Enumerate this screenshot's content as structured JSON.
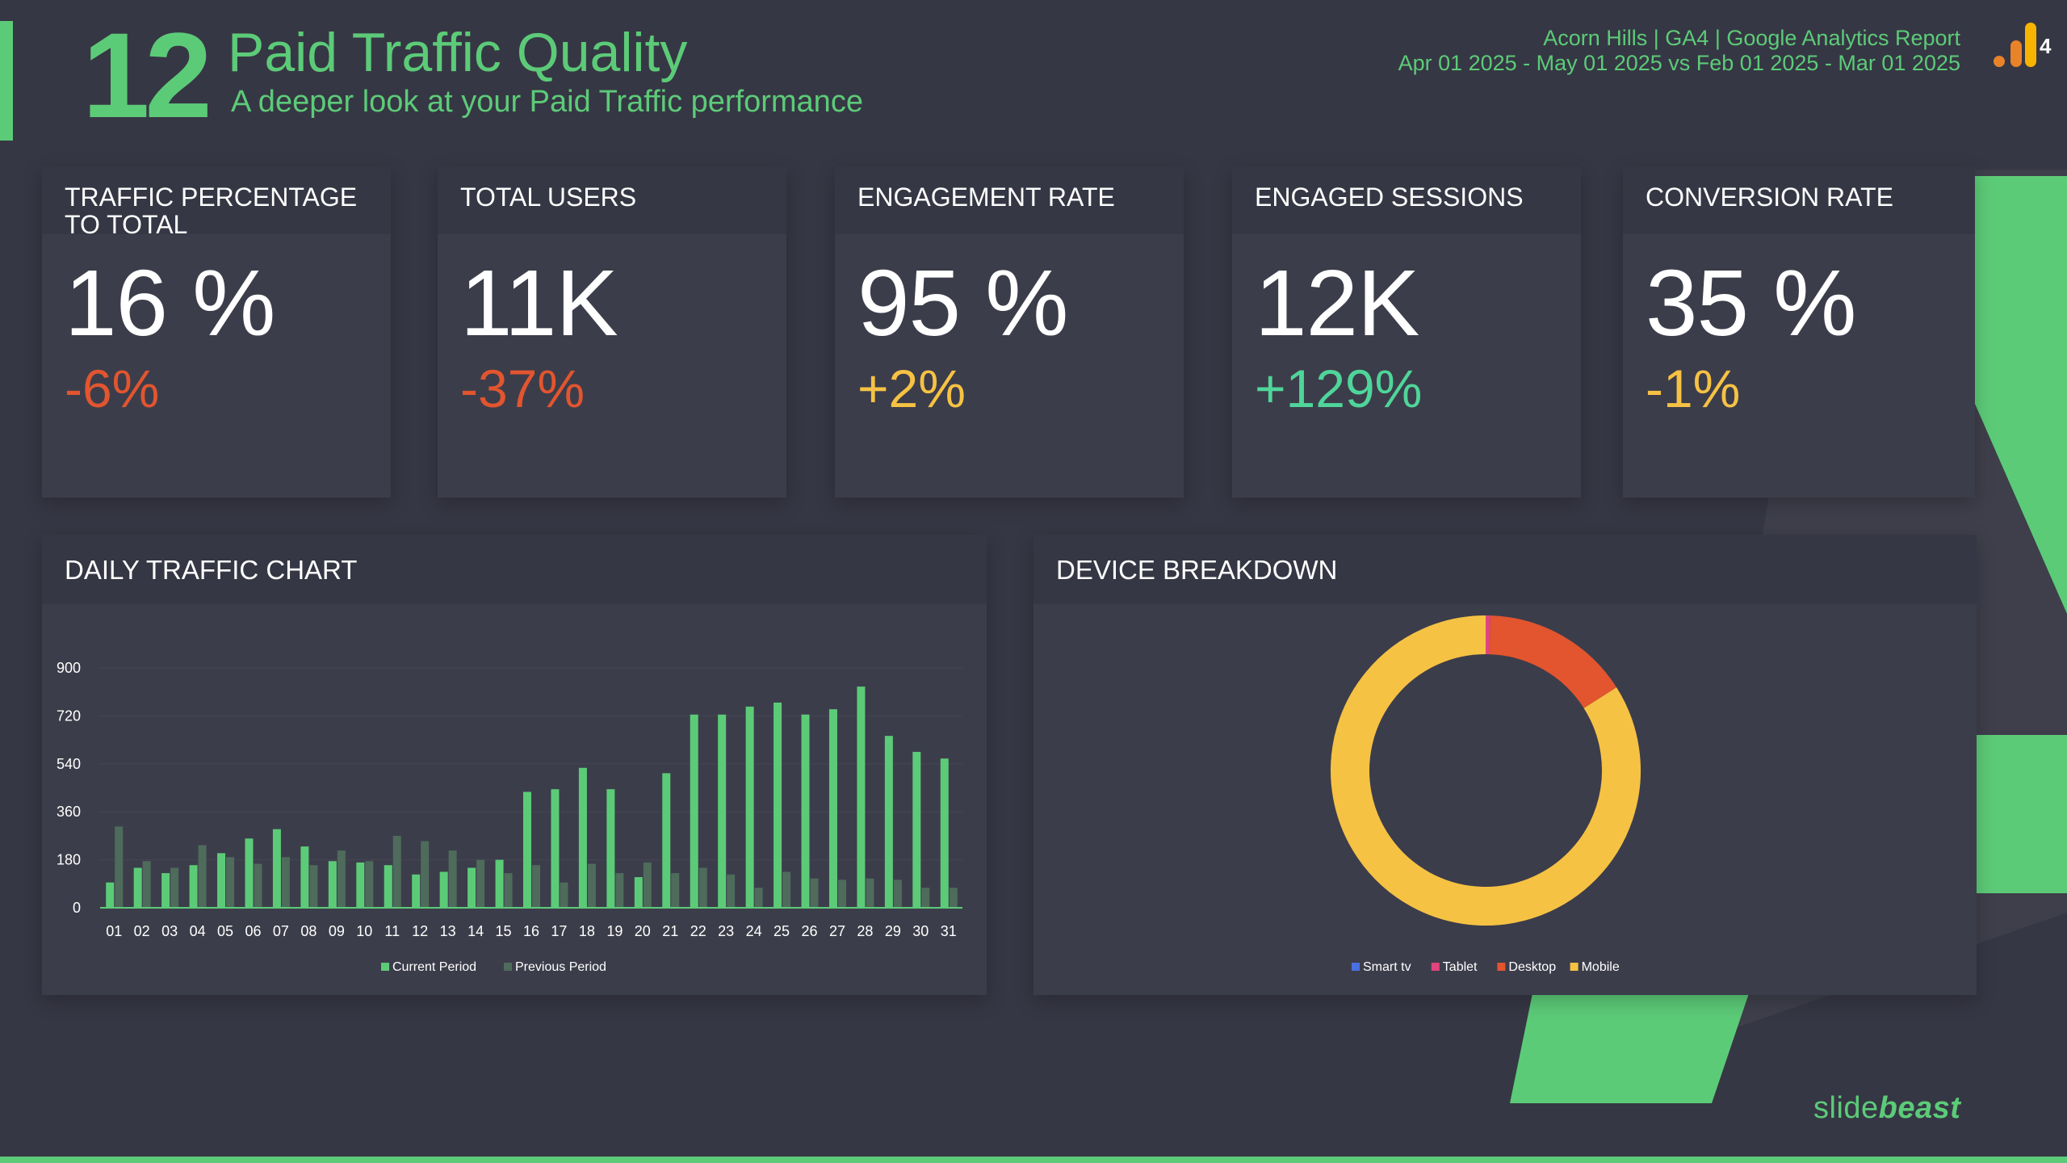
{
  "header": {
    "slide_number": "12",
    "title": "Paid Traffic Quality",
    "subtitle": "A deeper look at your Paid Traffic performance",
    "report_name": "Acorn Hills | GA4 | Google Analytics Report",
    "date_range": "Apr 01 2025 - May 01 2025 vs Feb 01 2025 - Mar 01 2025",
    "page_badge": "4"
  },
  "colors": {
    "accent_green": "#5ccb78",
    "negative": "#e2552f",
    "neutral_warn": "#f6c244",
    "positive": "#4fd59a",
    "background": "#363744",
    "card": "#3c3d4a"
  },
  "metrics": [
    {
      "label": "TRAFFIC PERCENTAGE TO TOTAL",
      "value": "16 %",
      "delta": "-6%",
      "delta_color": "#e2552f"
    },
    {
      "label": "TOTAL USERS",
      "value": "11K",
      "delta": "-37%",
      "delta_color": "#e2552f"
    },
    {
      "label": "ENGAGEMENT RATE",
      "value": "95 %",
      "delta": "+2%",
      "delta_color": "#f6c244"
    },
    {
      "label": "ENGAGED SESSIONS",
      "value": "12K",
      "delta": "+129%",
      "delta_color": "#4fd59a"
    },
    {
      "label": "CONVERSION RATE",
      "value": "35 %",
      "delta": "-1%",
      "delta_color": "#f6c244"
    }
  ],
  "daily_panel": {
    "title": "DAILY TRAFFIC CHART"
  },
  "device_panel": {
    "title": "DEVICE BREAKDOWN"
  },
  "chart_data": [
    {
      "type": "bar",
      "title": "DAILY TRAFFIC CHART",
      "xlabel": "",
      "ylabel": "",
      "ylim": [
        0,
        900
      ],
      "yticks": [
        0,
        180,
        360,
        540,
        720,
        900
      ],
      "grid": true,
      "legend_position": "bottom",
      "categories": [
        "01",
        "02",
        "03",
        "04",
        "05",
        "06",
        "07",
        "08",
        "09",
        "10",
        "11",
        "12",
        "13",
        "14",
        "15",
        "16",
        "17",
        "18",
        "19",
        "20",
        "21",
        "22",
        "23",
        "24",
        "25",
        "26",
        "27",
        "28",
        "29",
        "30",
        "31"
      ],
      "series": [
        {
          "name": "Current Period",
          "color": "#5ccb78",
          "values": [
            95,
            150,
            130,
            160,
            205,
            260,
            295,
            230,
            175,
            170,
            160,
            125,
            135,
            150,
            180,
            435,
            445,
            525,
            445,
            115,
            505,
            725,
            725,
            755,
            770,
            725,
            745,
            830,
            645,
            585,
            560
          ]
        },
        {
          "name": "Previous Period",
          "color": "#4e6b5c",
          "values": [
            305,
            175,
            150,
            235,
            190,
            165,
            190,
            160,
            215,
            175,
            270,
            250,
            215,
            180,
            130,
            160,
            95,
            165,
            130,
            170,
            130,
            150,
            125,
            75,
            135,
            110,
            105,
            110,
            105,
            75,
            75
          ]
        }
      ]
    },
    {
      "type": "pie",
      "title": "DEVICE BREAKDOWN",
      "donut": true,
      "legend_position": "bottom",
      "slices": [
        {
          "name": "Smart tv",
          "value": 0,
          "color": "#4a6fe0"
        },
        {
          "name": "Tablet",
          "value": 0.5,
          "color": "#e0457b"
        },
        {
          "name": "Desktop",
          "value": 15.5,
          "color": "#e2552f"
        },
        {
          "name": "Mobile",
          "value": 84,
          "color": "#f6c244"
        }
      ]
    }
  ],
  "footer": {
    "brand_light": "slide",
    "brand_bold": "beast"
  }
}
